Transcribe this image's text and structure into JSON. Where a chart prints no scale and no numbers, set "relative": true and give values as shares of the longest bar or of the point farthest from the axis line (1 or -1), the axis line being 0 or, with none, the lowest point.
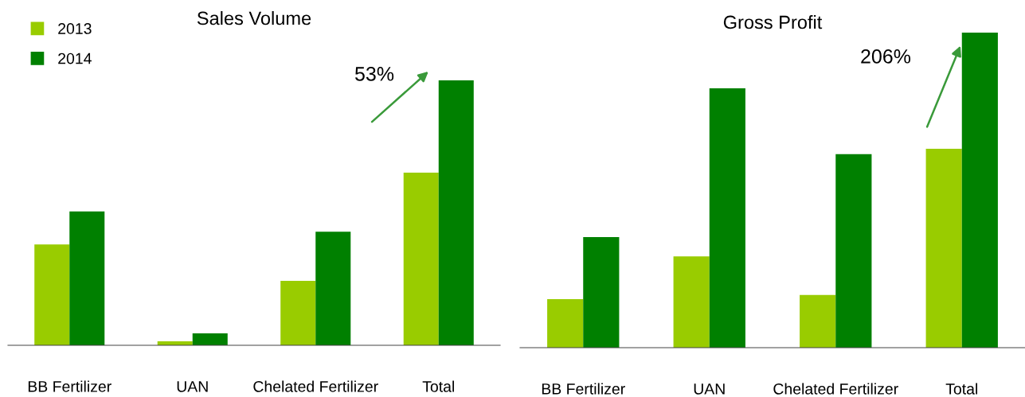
{
  "chart_data": [
    {
      "type": "bar",
      "title": "Sales Volume",
      "relative": true,
      "categories": [
        "BB Fertilizer",
        "UAN",
        "Chelated Fertilizer",
        "Total"
      ],
      "series": [
        {
          "name": "2013",
          "color": "#99cc00",
          "values": [
            0.381,
            0.015,
            0.243,
            0.652
          ]
        },
        {
          "name": "2014",
          "color": "#008000",
          "values": [
            0.505,
            0.045,
            0.429,
            1
          ]
        }
      ],
      "legend": "top left",
      "grid": false,
      "annotations": [
        "53%"
      ]
    },
    {
      "type": "bar",
      "title": "Gross Profit",
      "relative": true,
      "categories": [
        "BB Fertilizer",
        "UAN",
        "Chelated Fertilizer",
        "Total"
      ],
      "series": [
        {
          "color": "#99cc00",
          "values": [
            0.154,
            0.29,
            0.167,
            0.631
          ]
        },
        {
          "color": "#008000",
          "values": [
            0.351,
            0.823,
            0.614,
            1
          ]
        }
      ],
      "legend": false,
      "grid": false,
      "annotations": [
        "206%"
      ]
    }
  ]
}
